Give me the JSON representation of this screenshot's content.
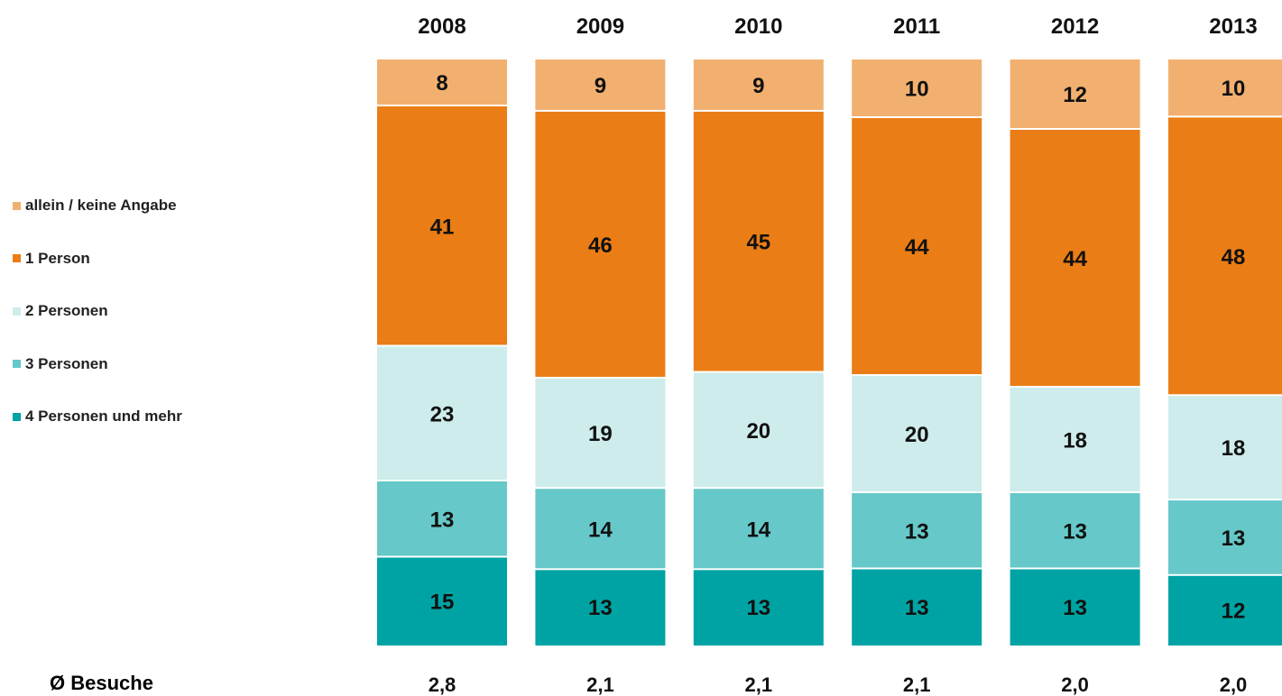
{
  "chart_data": {
    "type": "bar",
    "stacked": true,
    "categories": [
      "2008",
      "2009",
      "2010",
      "2011",
      "2012",
      "2013"
    ],
    "series": [
      {
        "name": "4 Personen und mehr",
        "values": [
          15,
          13,
          13,
          13,
          13,
          12
        ],
        "color": "#00A3A3"
      },
      {
        "name": "3 Personen",
        "values": [
          13,
          14,
          14,
          13,
          13,
          13
        ],
        "color": "#66C8C8"
      },
      {
        "name": "2 Personen",
        "values": [
          23,
          19,
          20,
          20,
          18,
          18
        ],
        "color": "#CDECEB"
      },
      {
        "name": "1 Person",
        "values": [
          41,
          46,
          45,
          44,
          44,
          48
        ],
        "color": "#EA7D15"
      },
      {
        "name": "allein / keine Angabe",
        "values": [
          8,
          9,
          9,
          10,
          12,
          10
        ],
        "color": "#F2B070"
      }
    ],
    "legend_order": [
      "allein / keine Angabe",
      "1 Person",
      "2 Personen",
      "3 Personen",
      "4 Personen und mehr"
    ],
    "legend_position": "left",
    "ylim": [
      0,
      100
    ],
    "footer": {
      "label": "Ø Besuche",
      "values": [
        "2,8",
        "2,1",
        "2,1",
        "2,1",
        "2,0",
        "2,0"
      ]
    }
  }
}
